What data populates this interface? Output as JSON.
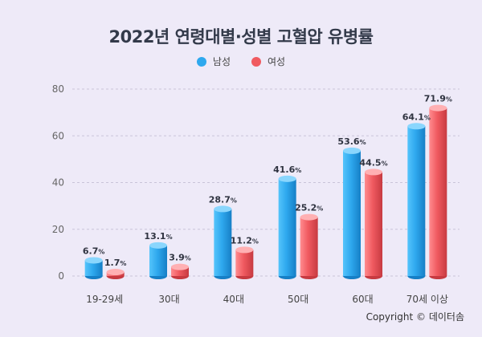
{
  "chart_data": {
    "type": "bar",
    "title": "2022년 연령대별·성별 고혈압 유병률",
    "categories": [
      "19-29세",
      "30대",
      "40대",
      "50대",
      "60대",
      "70세 이상"
    ],
    "series": [
      {
        "name": "남성",
        "color": "#2ea8ee",
        "values": [
          6.7,
          13.1,
          28.7,
          41.6,
          53.6,
          64.1
        ]
      },
      {
        "name": "여성",
        "color": "#f05a60",
        "values": [
          1.7,
          3.9,
          11.2,
          25.2,
          44.5,
          71.9
        ]
      }
    ],
    "unit": "%",
    "ylim": [
      0,
      80
    ],
    "yticks": [
      0,
      20,
      40,
      60,
      80
    ],
    "grid": true,
    "legend_position": "top-center"
  },
  "copyright": "Copyright © 데이터솜"
}
